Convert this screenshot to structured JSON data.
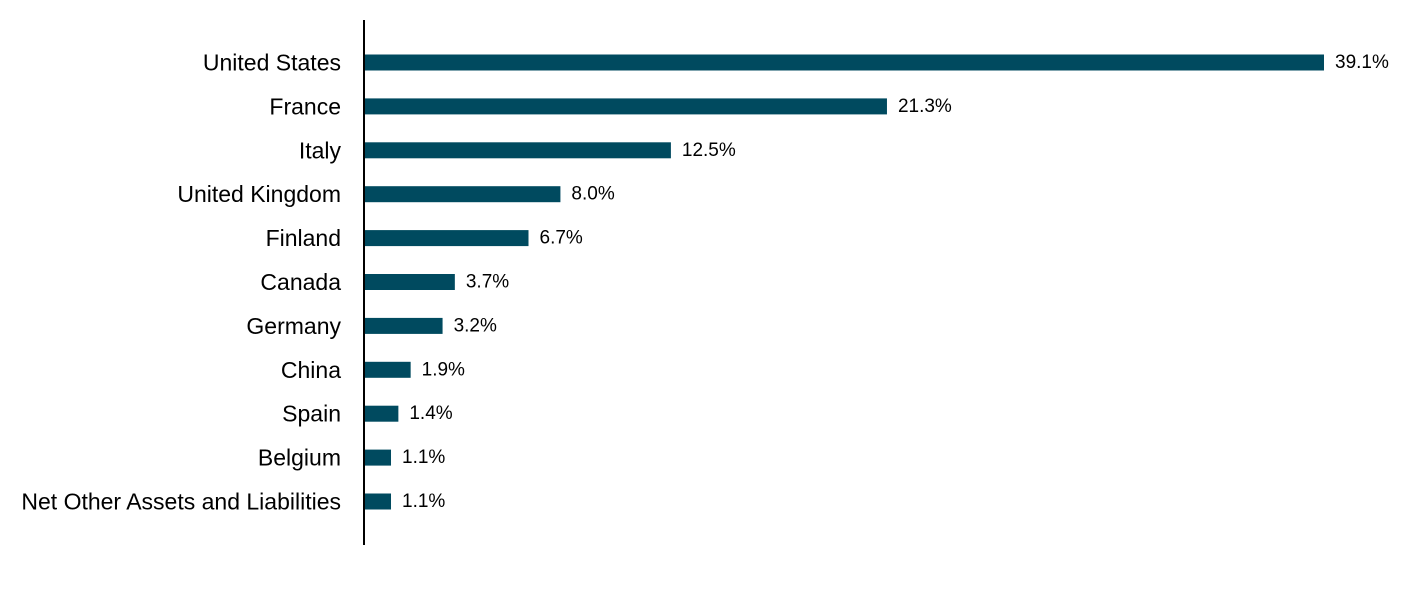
{
  "chart_data": {
    "type": "bar",
    "orientation": "horizontal",
    "categories": [
      "United States",
      "France",
      "Italy",
      "United Kingdom",
      "Finland",
      "Canada",
      "Germany",
      "China",
      "Spain",
      "Belgium",
      "Net Other Assets and Liabilities"
    ],
    "values": [
      39.1,
      21.3,
      12.5,
      8.0,
      6.7,
      3.7,
      3.2,
      1.9,
      1.4,
      1.1,
      1.1
    ],
    "value_labels": [
      "39.1%",
      "21.3%",
      "12.5%",
      "8.0%",
      "6.7%",
      "3.7%",
      "3.2%",
      "1.9%",
      "1.4%",
      "1.1%",
      "1.1%"
    ],
    "unit": "%",
    "title": "",
    "xlabel": "",
    "ylabel": "",
    "xlim": [
      0,
      39.1
    ],
    "grid": false,
    "legend": "none",
    "bar_color": "#004a5f",
    "axis_color": "#000000"
  }
}
